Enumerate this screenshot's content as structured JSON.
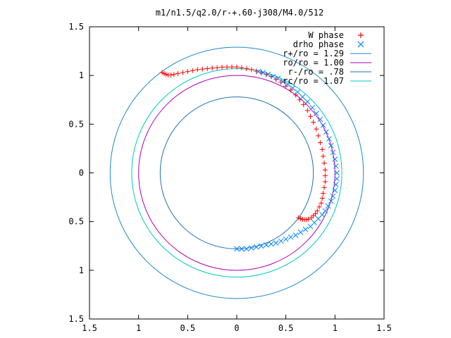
{
  "chart_data": {
    "type": "scatter",
    "title": "m1/n1.5/q2.0/r-+.60-j308/M4.0/512",
    "xlabel": "",
    "ylabel": "",
    "xlim": [
      -1.5,
      1.5
    ],
    "ylim": [
      -1.5,
      1.5
    ],
    "x_ticks": [
      {
        "value": -1.5,
        "label": "1.5"
      },
      {
        "value": -1.0,
        "label": "1"
      },
      {
        "value": -0.5,
        "label": "0.5"
      },
      {
        "value": 0.0,
        "label": "0"
      },
      {
        "value": 0.5,
        "label": "0.5"
      },
      {
        "value": 1.0,
        "label": "1"
      },
      {
        "value": 1.5,
        "label": "1.5"
      }
    ],
    "y_ticks": [
      {
        "value": 1.5,
        "label": "1.5"
      },
      {
        "value": 1.0,
        "label": "1"
      },
      {
        "value": 0.5,
        "label": "0.5"
      },
      {
        "value": 0.0,
        "label": "0"
      },
      {
        "value": -0.5,
        "label": "0.5"
      },
      {
        "value": -1.0,
        "label": "1"
      },
      {
        "value": -1.5,
        "label": "1.5"
      }
    ],
    "grid": false,
    "legend_position": "top-right",
    "legend": [
      {
        "label": "W phase",
        "marker": "+",
        "color": "#ff0000"
      },
      {
        "label": "drho phase",
        "marker": "x",
        "color": "#0080ff"
      },
      {
        "label": "r+/ro = 1.29",
        "marker": "line",
        "color": "#1a8ac8"
      },
      {
        "label": "ro/ro = 1.00",
        "marker": "line",
        "color": "#b000b0"
      },
      {
        "label": "r-/ro =  .78",
        "marker": "line",
        "color": "#1f6fb8"
      },
      {
        "label": "rc/ro = 1.07",
        "marker": "line",
        "color": "#00c8c8"
      }
    ],
    "circles": [
      {
        "name": "r+/ro = 1.29",
        "r": 1.29,
        "color": "#1a8ac8"
      },
      {
        "name": "ro/ro = 1.00",
        "r": 1.0,
        "color": "#b000b0"
      },
      {
        "name": "r-/ro =  .78",
        "r": 0.78,
        "color": "#1f6fb8"
      },
      {
        "name": "rc/ro = 1.07",
        "r": 1.07,
        "color": "#00c8c8"
      }
    ],
    "series": [
      {
        "name": "W phase",
        "marker": "+",
        "color": "#ff0000",
        "points": [
          [
            -0.76,
            1.03
          ],
          [
            -0.74,
            1.02
          ],
          [
            -0.72,
            1.01
          ],
          [
            -0.7,
            1.005
          ],
          [
            -0.67,
            1.005
          ],
          [
            -0.64,
            1.01
          ],
          [
            -0.6,
            1.02
          ],
          [
            -0.55,
            1.03
          ],
          [
            -0.5,
            1.04
          ],
          [
            -0.45,
            1.05
          ],
          [
            -0.4,
            1.06
          ],
          [
            -0.35,
            1.065
          ],
          [
            -0.3,
            1.07
          ],
          [
            -0.25,
            1.075
          ],
          [
            -0.2,
            1.08
          ],
          [
            -0.15,
            1.085
          ],
          [
            -0.1,
            1.087
          ],
          [
            -0.05,
            1.088
          ],
          [
            0.0,
            1.087
          ],
          [
            0.05,
            1.08
          ],
          [
            0.1,
            1.07
          ],
          [
            0.15,
            1.06
          ],
          [
            0.2,
            1.045
          ],
          [
            0.25,
            1.03
          ],
          [
            0.3,
            1.01
          ],
          [
            0.35,
            0.99
          ],
          [
            0.4,
            0.96
          ],
          [
            0.45,
            0.93
          ],
          [
            0.5,
            0.89
          ],
          [
            0.55,
            0.85
          ],
          [
            0.6,
            0.8
          ],
          [
            0.64,
            0.75
          ],
          [
            0.68,
            0.7
          ],
          [
            0.72,
            0.64
          ],
          [
            0.75,
            0.58
          ],
          [
            0.78,
            0.52
          ],
          [
            0.81,
            0.45
          ],
          [
            0.83,
            0.38
          ],
          [
            0.85,
            0.31
          ],
          [
            0.87,
            0.24
          ],
          [
            0.88,
            0.17
          ],
          [
            0.89,
            0.1
          ],
          [
            0.9,
            0.03
          ],
          [
            0.9,
            -0.03
          ],
          [
            0.9,
            -0.09
          ],
          [
            0.89,
            -0.15
          ],
          [
            0.88,
            -0.21
          ],
          [
            0.87,
            -0.26
          ],
          [
            0.86,
            -0.31
          ],
          [
            0.84,
            -0.35
          ],
          [
            0.82,
            -0.39
          ],
          [
            0.8,
            -0.42
          ],
          [
            0.78,
            -0.44
          ],
          [
            0.76,
            -0.46
          ],
          [
            0.73,
            -0.475
          ],
          [
            0.71,
            -0.48
          ],
          [
            0.69,
            -0.48
          ],
          [
            0.67,
            -0.478
          ],
          [
            0.65,
            -0.47
          ],
          [
            0.63,
            -0.46
          ]
        ]
      },
      {
        "name": "drho phase",
        "marker": "x",
        "color": "#0080ff",
        "points": [
          [
            0.22,
            1.04
          ],
          [
            0.27,
            1.03
          ],
          [
            0.32,
            1.01
          ],
          [
            0.37,
            0.99
          ],
          [
            0.42,
            0.97
          ],
          [
            0.47,
            0.94
          ],
          [
            0.52,
            0.91
          ],
          [
            0.57,
            0.87
          ],
          [
            0.62,
            0.83
          ],
          [
            0.67,
            0.78
          ],
          [
            0.72,
            0.73
          ],
          [
            0.77,
            0.67
          ],
          [
            0.81,
            0.61
          ],
          [
            0.85,
            0.55
          ],
          [
            0.88,
            0.49
          ],
          [
            0.91,
            0.42
          ],
          [
            0.94,
            0.35
          ],
          [
            0.96,
            0.28
          ],
          [
            0.98,
            0.21
          ],
          [
            1.0,
            0.14
          ],
          [
            1.01,
            0.07
          ],
          [
            1.02,
            0.0
          ],
          [
            1.02,
            -0.06
          ],
          [
            1.01,
            -0.12
          ],
          [
            1.0,
            -0.18
          ],
          [
            0.98,
            -0.24
          ],
          [
            0.96,
            -0.29
          ],
          [
            0.93,
            -0.34
          ],
          [
            0.9,
            -0.39
          ],
          [
            0.87,
            -0.43
          ],
          [
            0.83,
            -0.47
          ],
          [
            0.79,
            -0.51
          ],
          [
            0.75,
            -0.55
          ],
          [
            0.7,
            -0.58
          ],
          [
            0.65,
            -0.61
          ],
          [
            0.6,
            -0.64
          ],
          [
            0.55,
            -0.66
          ],
          [
            0.5,
            -0.68
          ],
          [
            0.45,
            -0.7
          ],
          [
            0.4,
            -0.72
          ],
          [
            0.35,
            -0.73
          ],
          [
            0.3,
            -0.74
          ],
          [
            0.25,
            -0.75
          ],
          [
            0.2,
            -0.76
          ],
          [
            0.15,
            -0.77
          ],
          [
            0.1,
            -0.78
          ],
          [
            0.05,
            -0.78
          ],
          [
            0.0,
            -0.78
          ]
        ]
      }
    ]
  }
}
